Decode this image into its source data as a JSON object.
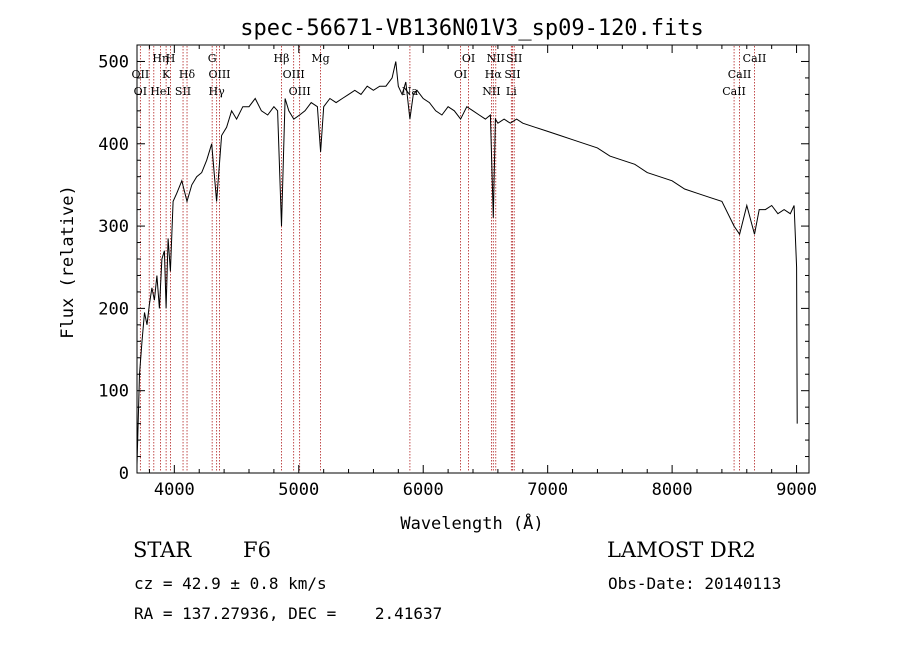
{
  "chart_data": {
    "type": "line",
    "title": "spec-56671-VB136N01V3_sp09-120.fits",
    "xlabel": "Wavelength (Å)",
    "ylabel": "Flux (relative)",
    "xlim": [
      3700,
      9100
    ],
    "ylim": [
      0,
      520
    ],
    "xticks": [
      4000,
      5000,
      6000,
      7000,
      8000,
      9000
    ],
    "yticks": [
      0,
      100,
      200,
      300,
      400,
      500
    ],
    "xtick_labels": [
      "4000",
      "5000",
      "6000",
      "7000",
      "8000",
      "9000"
    ],
    "ytick_labels": [
      "0",
      "100",
      "200",
      "300",
      "400",
      "500"
    ],
    "spectrum": {
      "x": [
        3700,
        3720,
        3740,
        3760,
        3780,
        3800,
        3820,
        3840,
        3860,
        3880,
        3900,
        3920,
        3934,
        3950,
        3968,
        3990,
        4020,
        4060,
        4102,
        4140,
        4180,
        4220,
        4260,
        4300,
        4340,
        4380,
        4420,
        4460,
        4500,
        4550,
        4600,
        4650,
        4700,
        4750,
        4800,
        4830,
        4861,
        4890,
        4920,
        4960,
        5007,
        5050,
        5100,
        5150,
        5175,
        5200,
        5250,
        5300,
        5350,
        5400,
        5450,
        5500,
        5550,
        5600,
        5650,
        5700,
        5750,
        5780,
        5800,
        5830,
        5860,
        5893,
        5920,
        5950,
        6000,
        6050,
        6100,
        6150,
        6200,
        6250,
        6300,
        6350,
        6400,
        6450,
        6500,
        6540,
        6563,
        6580,
        6600,
        6650,
        6700,
        6750,
        6800,
        6900,
        7000,
        7100,
        7200,
        7300,
        7400,
        7500,
        7600,
        7700,
        7800,
        7900,
        8000,
        8100,
        8200,
        8300,
        8400,
        8498,
        8542,
        8600,
        8662,
        8700,
        8750,
        8800,
        8850,
        8900,
        8950,
        8980,
        9000,
        9005
      ],
      "y": [
        10,
        120,
        160,
        195,
        180,
        205,
        225,
        210,
        240,
        200,
        260,
        270,
        200,
        285,
        245,
        330,
        340,
        355,
        330,
        350,
        360,
        365,
        380,
        400,
        330,
        410,
        420,
        440,
        430,
        445,
        445,
        455,
        440,
        435,
        445,
        440,
        300,
        455,
        440,
        430,
        435,
        440,
        450,
        445,
        390,
        445,
        455,
        450,
        455,
        460,
        465,
        460,
        470,
        465,
        470,
        470,
        480,
        500,
        470,
        460,
        475,
        430,
        460,
        465,
        455,
        450,
        440,
        435,
        445,
        440,
        430,
        445,
        440,
        435,
        430,
        435,
        310,
        430,
        425,
        430,
        425,
        430,
        425,
        420,
        415,
        410,
        405,
        400,
        395,
        385,
        380,
        375,
        365,
        360,
        355,
        345,
        340,
        335,
        330,
        300,
        290,
        325,
        290,
        320,
        320,
        325,
        315,
        320,
        315,
        325,
        250,
        60
      ]
    },
    "lines_top": [
      {
        "label": "Hη",
        "x": 3889,
        "row": 1
      },
      {
        "label": "H",
        "x": 3970,
        "row": 1
      },
      {
        "label": "G",
        "x": 4304,
        "row": 1
      },
      {
        "label": "Hβ",
        "x": 4861,
        "row": 1
      },
      {
        "label": "Mg",
        "x": 5175,
        "row": 1
      },
      {
        "label": "OI",
        "x": 6364,
        "row": 1
      },
      {
        "label": "NII",
        "x": 6583,
        "row": 1
      },
      {
        "label": "SII",
        "x": 6731,
        "row": 1
      },
      {
        "label": "CaII",
        "x": 8662,
        "row": 1
      },
      {
        "label": "OII",
        "x": 3727,
        "row": 2
      },
      {
        "label": "K",
        "x": 3934,
        "row": 2
      },
      {
        "label": "Hδ",
        "x": 4102,
        "row": 2
      },
      {
        "label": "OIII",
        "x": 4363,
        "row": 2
      },
      {
        "label": "OIII",
        "x": 4959,
        "row": 2
      },
      {
        "label": "OI",
        "x": 6300,
        "row": 2
      },
      {
        "label": "Hα",
        "x": 6563,
        "row": 2
      },
      {
        "label": "SII",
        "x": 6717,
        "row": 2
      },
      {
        "label": "CaII",
        "x": 8542,
        "row": 2
      },
      {
        "label": "OI",
        "x": 3727,
        "row": 3
      },
      {
        "label": "HeI",
        "x": 3889,
        "row": 3
      },
      {
        "label": "SII",
        "x": 4070,
        "row": 3
      },
      {
        "label": "Hγ",
        "x": 4340,
        "row": 3
      },
      {
        "label": "OIII",
        "x": 5007,
        "row": 3
      },
      {
        "label": "Na",
        "x": 5893,
        "row": 3
      },
      {
        "label": "NII",
        "x": 6548,
        "row": 3
      },
      {
        "label": "Li",
        "x": 6708,
        "row": 3
      },
      {
        "label": "CaII",
        "x": 8498,
        "row": 3
      }
    ],
    "line_positions": [
      3727,
      3798,
      3835,
      3889,
      3934,
      3970,
      4070,
      4102,
      4304,
      4340,
      4363,
      4861,
      4959,
      5007,
      5175,
      5893,
      6300,
      6364,
      6548,
      6563,
      6583,
      6708,
      6717,
      6731,
      8498,
      8542,
      8662
    ]
  },
  "footer": {
    "object_class": "STAR",
    "subclass": "F6",
    "survey": "LAMOST DR2",
    "cz": "cz = 42.9 ± 0.8 km/s",
    "obs_date": "Obs-Date: 20140113",
    "coords": "RA = 137.27936, DEC =    2.41637"
  },
  "colors": {
    "axis": "#000000",
    "spectrum": "#000000",
    "marker": "#b22222"
  }
}
